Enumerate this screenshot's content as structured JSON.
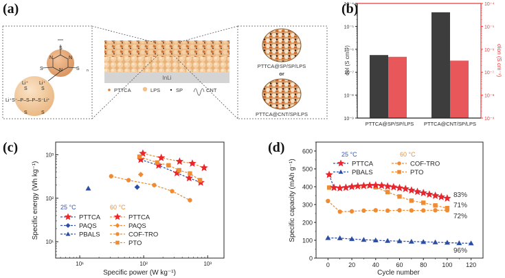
{
  "panels": {
    "a": "(a)",
    "b": "(b)",
    "c": "(c)",
    "d": "(d)"
  },
  "schematic": {
    "molecule_labels": {
      "ptca_atoms": [
        "S",
        "N",
        "N",
        "N",
        "S",
        "S",
        "n"
      ],
      "lps_formula": "Li⁺S⁻–P–S–P–S⁻Li⁺",
      "li_top_left": "Li⁺",
      "li_top_right": "Li⁺",
      "s_labels": [
        "S",
        "S",
        "S",
        "S"
      ]
    },
    "anode_label": "InLi",
    "legend": [
      {
        "label": "PTTCA",
        "color": "#e07a30"
      },
      {
        "label": "LPS",
        "color": "#f2c08a"
      },
      {
        "label": "SP",
        "color": "#222222"
      },
      {
        "label": "CNT",
        "color": "#555555"
      }
    ],
    "inset_top_label": "PTTCA@SP/SP/LPS",
    "inset_or": "or",
    "inset_bottom_label": "PTTCA@CNT/SP/LPS"
  },
  "chart_data": [
    {
      "id": "b",
      "type": "bar",
      "categories": [
        "PTTCA@SP/SP/LPS",
        "PTTCA@CNT/SP/LPS"
      ],
      "series": [
        {
          "name": "σel",
          "color": "#3d3d3d",
          "values": [
            5.6e-07,
            4.1e-05
          ]
        },
        {
          "name": "σion",
          "color": "#e8585a",
          "values": [
            4.7e-07,
            3.2e-07
          ]
        }
      ],
      "yscale": "log",
      "ylim": [
        1e-09,
        0.0001
      ],
      "ylabel_left": "σel (S cm⁻¹)",
      "ylabel_right": "σion (S cm⁻¹)",
      "yticks": [
        "10⁻⁹",
        "10⁻⁸",
        "10⁻⁷",
        "10⁻⁶",
        "10⁻⁵",
        "10⁻⁴"
      ],
      "right_axis_color": "#e8393b"
    },
    {
      "id": "c",
      "type": "scatter",
      "xscale": "log",
      "yscale": "log",
      "xlim": [
        4.2,
        1800
      ],
      "ylim": [
        4.2,
        1950
      ],
      "xlabel": "Specific power (W kg⁻¹)",
      "ylabel": "Specific energy (Wh kg⁻¹)",
      "xticks": [
        "10¹",
        "10²",
        "10³"
      ],
      "yticks": [
        "10¹",
        "10²",
        "10³"
      ],
      "legend_groups": [
        {
          "title": "25 °C",
          "title_color": "#3a55a8",
          "entries": [
            "PTTCA",
            "PAQS",
            "PBALS"
          ]
        },
        {
          "title": "60 °C",
          "title_color": "#e8913a",
          "entries": [
            "PTTCA",
            "PAQS",
            "COF-TRO",
            "PTO"
          ]
        }
      ],
      "series": [
        {
          "name": "PTTCA",
          "temp": "25 °C",
          "marker": "star",
          "color": "#e8262b",
          "line_color": "#3a55a8",
          "x": [
            90,
            171,
            331,
            514,
            778
          ],
          "y": [
            770,
            570,
            380,
            290,
            230
          ]
        },
        {
          "name": "PAQS",
          "temp": "25 °C",
          "marker": "diamond",
          "color": "#2d4fa3",
          "line_color": "#2d4fa3",
          "x": [
            79
          ],
          "y": [
            180
          ]
        },
        {
          "name": "PBALS",
          "temp": "25 °C",
          "marker": "triangle",
          "color": "#2d4fa3",
          "line_color": "#2d4fa3",
          "x": [
            13.6
          ],
          "y": [
            168
          ]
        },
        {
          "name": "PTTCA",
          "temp": "60 °C",
          "marker": "star",
          "color": "#e8262b",
          "line_color": "#e8913a",
          "x": [
            97,
            188,
            364,
            576,
            880
          ],
          "y": [
            1070,
            850,
            700,
            630,
            500
          ]
        },
        {
          "name": "PAQS",
          "temp": "60 °C",
          "marker": "diamond",
          "color": "#ef8c33",
          "line_color": "#ef8c33",
          "x": [
            90
          ],
          "y": [
            350
          ]
        },
        {
          "name": "COF-TRO",
          "temp": "60 °C",
          "marker": "circle",
          "color": "#ef8c33",
          "line_color": "#ef8c33",
          "x": [
            31,
            58,
            146,
            278,
            528
          ],
          "y": [
            320,
            260,
            200,
            145,
            90
          ]
        },
        {
          "name": "PTO",
          "temp": "60 °C",
          "marker": "square",
          "color": "#ef8c33",
          "line_color": "#ef8c33",
          "x": [
            86,
            162,
            245,
            358,
            528,
            759
          ],
          "y": [
            900,
            660,
            570,
            440,
            370,
            260
          ]
        }
      ]
    },
    {
      "id": "d",
      "type": "line",
      "xlim": [
        -10,
        130
      ],
      "ylim": [
        0,
        650
      ],
      "xlabel": "Cycle number",
      "ylabel": "Specific capacity (mAh g⁻¹)",
      "xticks": [
        0,
        20,
        40,
        60,
        80,
        100,
        120
      ],
      "yticks": [
        0,
        100,
        200,
        300,
        400,
        500,
        600
      ],
      "legend_groups": [
        {
          "title": "25 °C",
          "title_color": "#3a55a8",
          "entries": [
            "PTTCA",
            "PBALS"
          ]
        },
        {
          "title": "60 °C",
          "title_color": "#e8913a",
          "entries": [
            "COF-TRO",
            "PTO"
          ]
        }
      ],
      "series": [
        {
          "name": "PTTCA",
          "temp": "25 °C",
          "marker": "star",
          "color": "#e8262b",
          "line_color": "#3a55a8",
          "x": [
            1,
            5,
            10,
            15,
            20,
            25,
            30,
            35,
            40,
            45,
            50,
            55,
            60,
            65,
            70,
            75,
            80,
            85,
            90,
            95,
            100
          ],
          "y": [
            467,
            395,
            392,
            395,
            400,
            403,
            405,
            407,
            408,
            406,
            402,
            398,
            393,
            388,
            380,
            372,
            365,
            357,
            350,
            343,
            335
          ]
        },
        {
          "name": "PBALS",
          "temp": "25 °C",
          "marker": "triangle",
          "color": "#2d4fa3",
          "line_color": "#2d4fa3",
          "x": [
            0,
            10,
            20,
            30,
            40,
            50,
            60,
            70,
            80,
            90,
            100,
            110,
            120
          ],
          "y": [
            113,
            112,
            107,
            103,
            100,
            97,
            95,
            93,
            91,
            89,
            87,
            84,
            83
          ]
        },
        {
          "name": "COF-TRO",
          "temp": "60 °C",
          "marker": "circle",
          "color": "#ef8c33",
          "line_color": "#ef8c33",
          "x": [
            0,
            10,
            20,
            30,
            40,
            50,
            60,
            70,
            80,
            90,
            100
          ],
          "y": [
            320,
            260,
            262,
            266,
            268,
            266,
            268,
            267,
            267,
            268,
            268
          ]
        },
        {
          "name": "PTO",
          "temp": "60 °C",
          "marker": "square",
          "color": "#ef8c33",
          "line_color": "#ef8c33",
          "x": [
            1,
            40,
            50,
            60,
            70,
            80,
            90,
            100
          ],
          "y": [
            395,
            397,
            370,
            345,
            322,
            310,
            295,
            280
          ]
        }
      ],
      "annotations": [
        "83%",
        "71%",
        "72%",
        "96%"
      ]
    }
  ]
}
